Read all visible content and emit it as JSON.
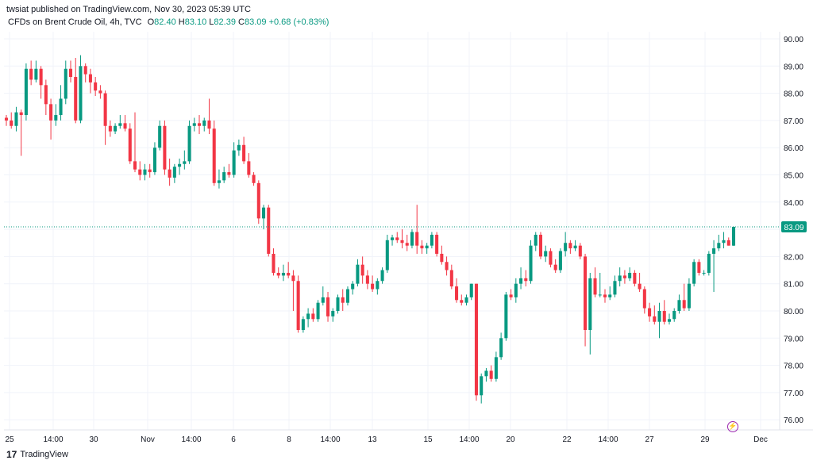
{
  "header": {
    "publisher_note": "twsiat published on TradingView.com, Nov 30, 2023 05:39 UTC",
    "symbol": "CFDs on Brent Crude Oil, 4h, TVC",
    "o_label": "O",
    "o_value": "82.40",
    "h_label": "H",
    "h_value": "83.10",
    "l_label": "L",
    "l_value": "82.39",
    "c_label": "C",
    "c_value": "83.09",
    "change": "+0.68 (+0.83%)"
  },
  "footer": {
    "brand": "TradingView",
    "logo": "17"
  },
  "colors": {
    "up": "#089981",
    "down": "#f23645",
    "price_line": "#089981",
    "grid": "#f0f3fa"
  },
  "chart_data": {
    "type": "candlestick",
    "interval": "4h",
    "ylim": [
      75.6,
      90.7
    ],
    "y_ticks": [
      "76.00",
      "77.00",
      "78.00",
      "79.00",
      "80.00",
      "81.00",
      "82.00",
      "83.00",
      "84.00",
      "85.00",
      "86.00",
      "87.00",
      "88.00",
      "89.00",
      "90.00"
    ],
    "x_ticks": [
      "25",
      "14:00",
      "30",
      "Nov",
      "14:00",
      "6",
      "8",
      "14:00",
      "13",
      "15",
      "14:00",
      "20",
      "22",
      "14:00",
      "27",
      "29",
      "Dec"
    ],
    "last_price": "83.09",
    "candles": [
      [
        87.1,
        87.2,
        86.8,
        87.0
      ],
      [
        87.0,
        87.3,
        86.7,
        86.8
      ],
      [
        86.8,
        87.5,
        86.6,
        87.3
      ],
      [
        87.3,
        87.4,
        85.7,
        87.2
      ],
      [
        87.2,
        89.1,
        87.0,
        88.9
      ],
      [
        88.9,
        89.2,
        88.3,
        88.5
      ],
      [
        88.5,
        89.2,
        88.4,
        88.9
      ],
      [
        88.9,
        89.0,
        87.8,
        88.3
      ],
      [
        88.3,
        88.5,
        87.2,
        87.6
      ],
      [
        87.6,
        87.8,
        86.3,
        87.0
      ],
      [
        87.0,
        87.6,
        86.8,
        87.2
      ],
      [
        87.2,
        88.3,
        87.0,
        87.8
      ],
      [
        87.8,
        89.2,
        87.6,
        88.9
      ],
      [
        88.9,
        89.2,
        88.4,
        88.6
      ],
      [
        88.6,
        89.3,
        86.9,
        87.0
      ],
      [
        87.0,
        89.4,
        86.9,
        89.0
      ],
      [
        89.0,
        89.1,
        88.4,
        88.7
      ],
      [
        88.7,
        88.9,
        88.0,
        88.4
      ],
      [
        88.4,
        88.6,
        87.9,
        88.1
      ],
      [
        88.1,
        88.3,
        87.8,
        88.0
      ],
      [
        88.0,
        88.1,
        86.1,
        86.8
      ],
      [
        86.8,
        87.0,
        86.4,
        86.6
      ],
      [
        86.6,
        86.9,
        86.5,
        86.8
      ],
      [
        86.8,
        87.2,
        86.7,
        86.9
      ],
      [
        86.9,
        87.2,
        86.6,
        86.7
      ],
      [
        86.7,
        86.9,
        85.4,
        85.5
      ],
      [
        85.5,
        87.3,
        85.1,
        85.2
      ],
      [
        85.2,
        85.5,
        84.8,
        85.0
      ],
      [
        85.0,
        85.4,
        84.8,
        85.2
      ],
      [
        85.2,
        85.4,
        84.9,
        85.1
      ],
      [
        85.1,
        86.2,
        85.0,
        86.0
      ],
      [
        86.0,
        87.0,
        85.9,
        86.8
      ],
      [
        86.8,
        87.0,
        85.0,
        85.2
      ],
      [
        85.2,
        85.6,
        84.6,
        84.9
      ],
      [
        84.9,
        85.4,
        84.7,
        85.3
      ],
      [
        85.3,
        85.6,
        85.0,
        85.4
      ],
      [
        85.4,
        85.9,
        85.2,
        85.5
      ],
      [
        85.5,
        87.0,
        85.4,
        86.8
      ],
      [
        86.8,
        87.1,
        86.6,
        86.9
      ],
      [
        86.9,
        87.2,
        86.5,
        86.8
      ],
      [
        86.8,
        87.1,
        86.6,
        87.0
      ],
      [
        87.0,
        87.8,
        86.5,
        86.7
      ],
      [
        86.7,
        87.0,
        84.6,
        84.7
      ],
      [
        84.7,
        85.2,
        84.5,
        84.8
      ],
      [
        84.8,
        85.3,
        84.7,
        85.1
      ],
      [
        85.1,
        85.4,
        84.9,
        85.0
      ],
      [
        85.0,
        86.2,
        84.9,
        85.9
      ],
      [
        85.9,
        86.3,
        85.7,
        86.1
      ],
      [
        86.1,
        86.4,
        85.4,
        85.5
      ],
      [
        85.5,
        85.8,
        84.9,
        85.0
      ],
      [
        85.0,
        85.1,
        84.6,
        84.7
      ],
      [
        84.7,
        84.8,
        83.2,
        83.4
      ],
      [
        83.4,
        83.9,
        83.0,
        83.8
      ],
      [
        83.8,
        83.9,
        82.0,
        82.1
      ],
      [
        82.1,
        82.3,
        81.3,
        81.4
      ],
      [
        81.4,
        81.6,
        81.2,
        81.3
      ],
      [
        81.3,
        81.7,
        81.1,
        81.4
      ],
      [
        81.4,
        81.8,
        81.2,
        81.3
      ],
      [
        81.3,
        81.5,
        80.0,
        81.1
      ],
      [
        81.1,
        81.3,
        79.2,
        79.3
      ],
      [
        79.3,
        79.8,
        79.2,
        79.7
      ],
      [
        79.7,
        80.1,
        79.4,
        79.9
      ],
      [
        79.9,
        80.1,
        79.6,
        79.7
      ],
      [
        79.7,
        80.4,
        79.6,
        80.3
      ],
      [
        80.3,
        80.9,
        80.2,
        80.5
      ],
      [
        80.5,
        80.7,
        79.6,
        79.8
      ],
      [
        79.8,
        80.1,
        79.6,
        80.0
      ],
      [
        80.0,
        80.6,
        79.9,
        80.5
      ],
      [
        80.5,
        80.8,
        80.0,
        80.3
      ],
      [
        80.3,
        80.9,
        80.2,
        80.8
      ],
      [
        80.8,
        81.1,
        80.6,
        81.0
      ],
      [
        81.0,
        81.9,
        80.9,
        81.7
      ],
      [
        81.7,
        82.0,
        81.0,
        81.3
      ],
      [
        81.3,
        81.5,
        80.8,
        81.0
      ],
      [
        81.0,
        81.3,
        80.7,
        80.8
      ],
      [
        80.8,
        81.2,
        80.6,
        81.1
      ],
      [
        81.1,
        81.6,
        81.0,
        81.5
      ],
      [
        81.5,
        82.8,
        81.4,
        82.6
      ],
      [
        82.6,
        82.8,
        82.4,
        82.7
      ],
      [
        82.7,
        82.9,
        82.5,
        82.6
      ],
      [
        82.6,
        83.0,
        82.3,
        82.5
      ],
      [
        82.5,
        82.8,
        82.2,
        82.4
      ],
      [
        82.4,
        83.0,
        82.3,
        82.9
      ],
      [
        82.9,
        83.9,
        82.1,
        82.4
      ],
      [
        82.4,
        82.6,
        82.1,
        82.3
      ],
      [
        82.3,
        82.5,
        82.1,
        82.4
      ],
      [
        82.4,
        82.9,
        82.3,
        82.8
      ],
      [
        82.8,
        82.9,
        82.0,
        82.1
      ],
      [
        82.1,
        82.4,
        81.7,
        81.8
      ],
      [
        81.8,
        82.0,
        81.3,
        81.5
      ],
      [
        81.5,
        81.7,
        80.8,
        80.9
      ],
      [
        80.9,
        81.2,
        80.3,
        80.4
      ],
      [
        80.4,
        80.6,
        80.2,
        80.3
      ],
      [
        80.3,
        80.6,
        80.2,
        80.5
      ],
      [
        80.5,
        81.0,
        80.4,
        81.0
      ],
      [
        81.0,
        81.0,
        76.7,
        76.9
      ],
      [
        76.9,
        77.7,
        76.6,
        77.6
      ],
      [
        77.6,
        77.9,
        77.4,
        77.8
      ],
      [
        77.8,
        78.0,
        77.4,
        77.5
      ],
      [
        77.5,
        78.5,
        77.4,
        78.3
      ],
      [
        78.3,
        79.2,
        78.2,
        79.0
      ],
      [
        79.0,
        80.7,
        78.9,
        80.6
      ],
      [
        80.6,
        80.8,
        80.4,
        80.5
      ],
      [
        80.5,
        81.2,
        80.3,
        81.0
      ],
      [
        81.0,
        81.6,
        80.8,
        81.2
      ],
      [
        81.2,
        81.5,
        80.9,
        81.1
      ],
      [
        81.1,
        82.6,
        81.0,
        82.4
      ],
      [
        82.4,
        82.9,
        82.2,
        82.8
      ],
      [
        82.8,
        82.9,
        81.9,
        82.0
      ],
      [
        82.0,
        82.4,
        81.8,
        82.2
      ],
      [
        82.2,
        82.3,
        81.6,
        81.7
      ],
      [
        81.7,
        81.9,
        81.4,
        81.5
      ],
      [
        81.5,
        82.3,
        81.4,
        82.2
      ],
      [
        82.2,
        82.9,
        82.0,
        82.5
      ],
      [
        82.5,
        82.6,
        82.1,
        82.3
      ],
      [
        82.3,
        82.6,
        82.2,
        82.4
      ],
      [
        82.4,
        82.5,
        81.9,
        82.0
      ],
      [
        82.0,
        82.1,
        78.7,
        79.3
      ],
      [
        79.3,
        81.4,
        78.4,
        81.2
      ],
      [
        81.2,
        81.6,
        80.5,
        80.6
      ],
      [
        80.6,
        81.4,
        80.5,
        80.6
      ],
      [
        80.6,
        80.8,
        80.3,
        80.5
      ],
      [
        80.5,
        80.9,
        80.4,
        80.6
      ],
      [
        80.6,
        81.3,
        80.5,
        81.1
      ],
      [
        81.1,
        81.6,
        80.9,
        81.3
      ],
      [
        81.3,
        81.5,
        81.0,
        81.2
      ],
      [
        81.2,
        81.6,
        81.1,
        81.4
      ],
      [
        81.4,
        81.5,
        80.9,
        81.0
      ],
      [
        81.0,
        81.4,
        80.7,
        80.8
      ],
      [
        80.8,
        80.9,
        79.9,
        80.1
      ],
      [
        80.1,
        80.3,
        79.6,
        79.8
      ],
      [
        79.8,
        80.2,
        79.5,
        79.6
      ],
      [
        79.6,
        80.3,
        79.0,
        80.0
      ],
      [
        80.0,
        80.4,
        79.5,
        79.6
      ],
      [
        79.6,
        79.9,
        79.5,
        79.7
      ],
      [
        79.7,
        80.1,
        79.6,
        80.0
      ],
      [
        80.0,
        80.6,
        79.9,
        80.4
      ],
      [
        80.4,
        81.0,
        80.0,
        80.1
      ],
      [
        80.1,
        81.2,
        80.0,
        81.0
      ],
      [
        81.0,
        81.9,
        80.9,
        81.8
      ],
      [
        81.8,
        81.9,
        81.3,
        81.4
      ],
      [
        81.4,
        81.5,
        81.3,
        81.4
      ],
      [
        81.4,
        82.2,
        81.3,
        82.1
      ],
      [
        82.1,
        82.6,
        80.7,
        82.3
      ],
      [
        82.3,
        82.8,
        82.2,
        82.5
      ],
      [
        82.5,
        82.9,
        82.3,
        82.6
      ],
      [
        82.6,
        82.7,
        82.4,
        82.4
      ],
      [
        82.4,
        83.1,
        82.39,
        83.09
      ]
    ]
  }
}
